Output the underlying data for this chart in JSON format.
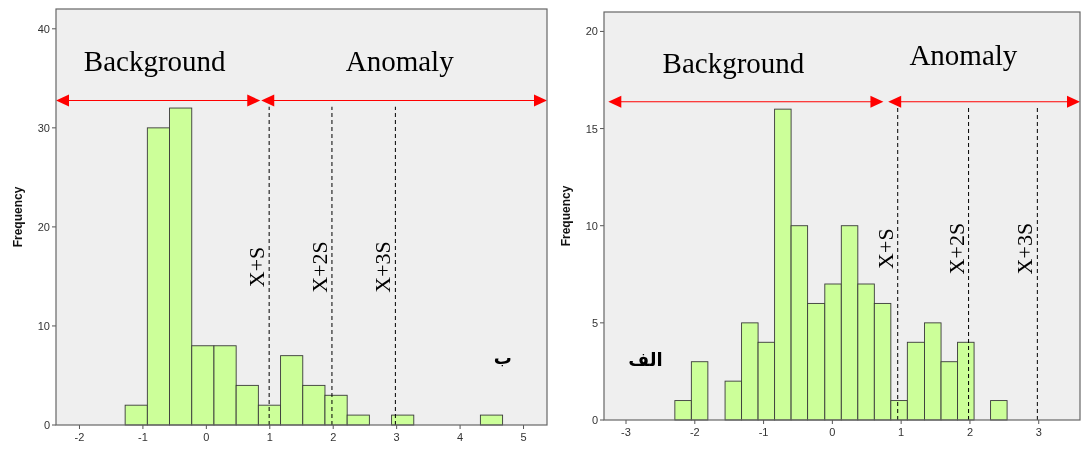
{
  "chart_data": [
    {
      "type": "histogram",
      "ylabel": "Frequency",
      "color": "#ccff99",
      "bins": [
        -1.28,
        -0.93,
        -0.58,
        -0.23,
        0.12,
        0.47,
        0.82,
        1.17,
        1.52,
        1.87,
        2.22,
        2.57,
        2.92,
        3.27,
        3.62,
        3.97,
        4.32,
        4.67
      ],
      "values": [
        2,
        30,
        32,
        8,
        8,
        4,
        2,
        7,
        4,
        3,
        1,
        0,
        1,
        0,
        0,
        0,
        1
      ],
      "xlim": [
        -2.37,
        5.37
      ],
      "xticks": [
        -2,
        -1,
        0,
        1,
        2,
        3,
        4,
        5
      ],
      "ylim": [
        0,
        42
      ],
      "yticks": [
        0,
        10,
        20,
        30,
        40
      ],
      "ref_lines": [
        {
          "axis": "x",
          "value": 0.99,
          "label": "X+S",
          "color": "#000000",
          "line_style": "dashed"
        },
        {
          "axis": "x",
          "value": 1.98,
          "label": "X+2S",
          "color": "#000000",
          "line_style": "dashed"
        },
        {
          "axis": "x",
          "value": 2.98,
          "label": "X+3S",
          "color": "#000000",
          "line_style": "dashed"
        }
      ],
      "annotations": [
        "Background",
        "Anomaly",
        "ب"
      ]
    },
    {
      "type": "histogram",
      "ylabel": "Frequency",
      "color": "#ccff99",
      "bins": [
        -2.29,
        -2.05,
        -1.81,
        -1.56,
        -1.32,
        -1.08,
        -0.84,
        -0.6,
        -0.36,
        -0.11,
        0.13,
        0.37,
        0.61,
        0.85,
        1.09,
        1.34,
        1.58,
        1.82,
        2.06,
        2.3,
        2.54
      ],
      "values": [
        1,
        3,
        0,
        2,
        5,
        4,
        16,
        10,
        6,
        7,
        10,
        7,
        6,
        1,
        4,
        5,
        3,
        4,
        0,
        1
      ],
      "xlim": [
        -3.32,
        3.6
      ],
      "xticks": [
        -3,
        -2,
        -1,
        0,
        1,
        2,
        3
      ],
      "ylim": [
        0,
        21
      ],
      "yticks": [
        0,
        5,
        10,
        15,
        20
      ],
      "ref_lines": [
        {
          "axis": "x",
          "value": 0.95,
          "label": "X+S",
          "color": "#000000",
          "line_style": "dashed"
        },
        {
          "axis": "x",
          "value": 1.98,
          "label": "X+2S",
          "color": "#000000",
          "line_style": "dashed"
        },
        {
          "axis": "x",
          "value": 2.98,
          "label": "X+3S",
          "color": "#000000",
          "line_style": "dashed"
        }
      ],
      "annotations": [
        "Background",
        "Anomaly",
        "الف"
      ]
    }
  ]
}
